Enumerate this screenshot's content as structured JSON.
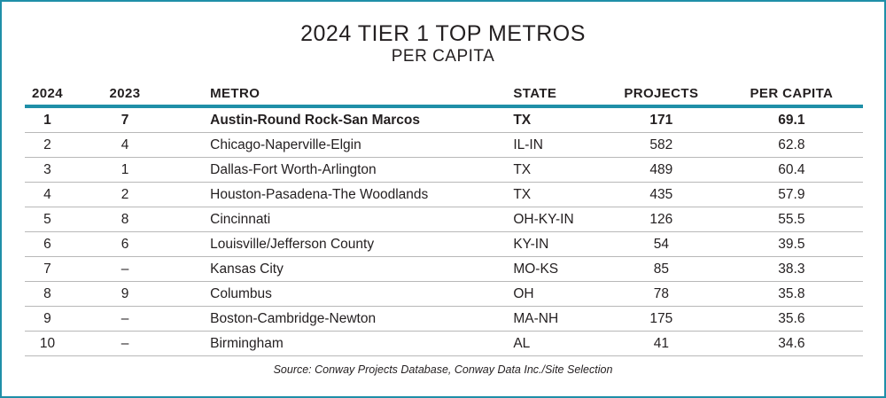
{
  "title": "2024 TIER 1 TOP METROS",
  "subtitle": "PER CAPITA",
  "columns": [
    "2024",
    "2023",
    "METRO",
    "STATE",
    "PROJECTS",
    "PER CAPITA"
  ],
  "rows": [
    {
      "rank_2024": "1",
      "rank_2023": "7",
      "metro": "Austin-Round Rock-San Marcos",
      "state": "TX",
      "projects": "171",
      "per_capita": "69.1"
    },
    {
      "rank_2024": "2",
      "rank_2023": "4",
      "metro": "Chicago-Naperville-Elgin",
      "state": "IL-IN",
      "projects": "582",
      "per_capita": "62.8"
    },
    {
      "rank_2024": "3",
      "rank_2023": "1",
      "metro": "Dallas-Fort Worth-Arlington",
      "state": "TX",
      "projects": "489",
      "per_capita": "60.4"
    },
    {
      "rank_2024": "4",
      "rank_2023": "2",
      "metro": "Houston-Pasadena-The Woodlands",
      "state": "TX",
      "projects": "435",
      "per_capita": "57.9"
    },
    {
      "rank_2024": "5",
      "rank_2023": "8",
      "metro": "Cincinnati",
      "state": "OH-KY-IN",
      "projects": "126",
      "per_capita": "55.5"
    },
    {
      "rank_2024": "6",
      "rank_2023": "6",
      "metro": "Louisville/Jefferson County",
      "state": "KY-IN",
      "projects": "54",
      "per_capita": "39.5"
    },
    {
      "rank_2024": "7",
      "rank_2023": "–",
      "metro": "Kansas City",
      "state": "MO-KS",
      "projects": "85",
      "per_capita": "38.3"
    },
    {
      "rank_2024": "8",
      "rank_2023": "9",
      "metro": "Columbus",
      "state": "OH",
      "projects": "78",
      "per_capita": "35.8"
    },
    {
      "rank_2024": "9",
      "rank_2023": "–",
      "metro": "Boston-Cambridge-Newton",
      "state": "MA-NH",
      "projects": "175",
      "per_capita": "35.6"
    },
    {
      "rank_2024": "10",
      "rank_2023": "–",
      "metro": "Birmingham",
      "state": "AL",
      "projects": "41",
      "per_capita": "34.6"
    }
  ],
  "source": "Source: Conway Projects Database, Conway Data Inc./Site Selection",
  "colors": {
    "accent": "#1f8fa8",
    "text": "#231f20",
    "rule": "#b8b8b8"
  }
}
